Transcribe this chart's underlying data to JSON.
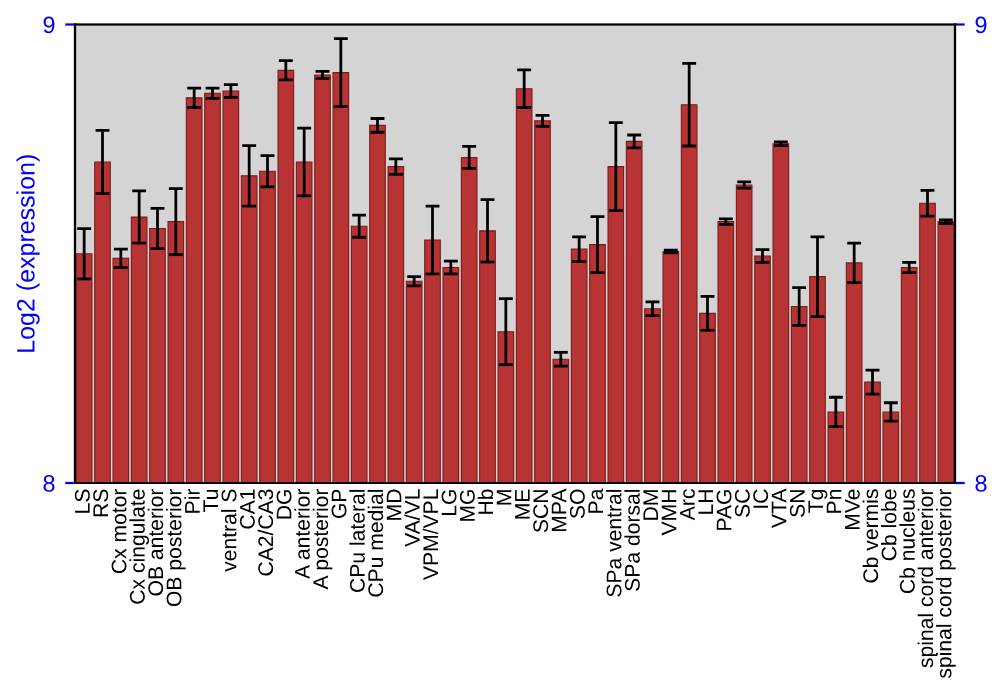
{
  "chart_data": {
    "type": "bar",
    "ylabel": "Log2 (expression)",
    "categories": [
      "LS",
      "RS",
      "Cx motor",
      "Cx cingulate",
      "OB anterior",
      "OB posterior",
      "Pir",
      "Tu",
      "ventral S",
      "CA1",
      "CA2/CA3",
      "DG",
      "A anterior",
      "A posterior",
      "GP",
      "CPu lateral",
      "CPu medial",
      "MD",
      "VA/VL",
      "VPM/VPL",
      "LG",
      "MG",
      "Hb",
      "M",
      "ME",
      "SCN",
      "MPA",
      "SO",
      "Pa",
      "SPa ventral",
      "SPa dorsal",
      "DM",
      "VMH",
      "Arc",
      "LH",
      "PAG",
      "SC",
      "IC",
      "VTA",
      "SN",
      "Tg",
      "Pn",
      "MVe",
      "Cb vermis",
      "Cb lobe",
      "Cb nucleus",
      "spinal cord anterior",
      "spinal cord posterior"
    ],
    "values": [
      8.5,
      8.7,
      8.49,
      8.58,
      8.555,
      8.57,
      8.84,
      8.85,
      8.855,
      8.67,
      8.68,
      8.9,
      8.7,
      8.89,
      8.895,
      8.56,
      8.78,
      8.69,
      8.44,
      8.53,
      8.47,
      8.71,
      8.55,
      8.33,
      8.86,
      8.79,
      8.27,
      8.51,
      8.52,
      8.69,
      8.745,
      8.38,
      8.505,
      8.825,
      8.37,
      8.57,
      8.65,
      8.495,
      8.74,
      8.385,
      8.45,
      8.155,
      8.48,
      8.22,
      8.155,
      8.47,
      8.61,
      8.57
    ],
    "errors": [
      0.055,
      0.069,
      0.02,
      0.057,
      0.044,
      0.072,
      0.021,
      0.011,
      0.014,
      0.066,
      0.034,
      0.021,
      0.074,
      0.008,
      0.074,
      0.024,
      0.015,
      0.017,
      0.01,
      0.074,
      0.014,
      0.024,
      0.068,
      0.072,
      0.041,
      0.012,
      0.015,
      0.027,
      0.061,
      0.096,
      0.014,
      0.015,
      0.003,
      0.09,
      0.037,
      0.006,
      0.007,
      0.014,
      0.004,
      0.041,
      0.087,
      0.032,
      0.043,
      0.026,
      0.02,
      0.011,
      0.028,
      0.004
    ],
    "color": "#b83434",
    "ylim": [
      8,
      9
    ],
    "yticks": [
      8,
      9
    ],
    "y2lim": [
      8,
      9
    ],
    "y2ticks": [
      8,
      9
    ],
    "grid": false,
    "legend": false
  }
}
